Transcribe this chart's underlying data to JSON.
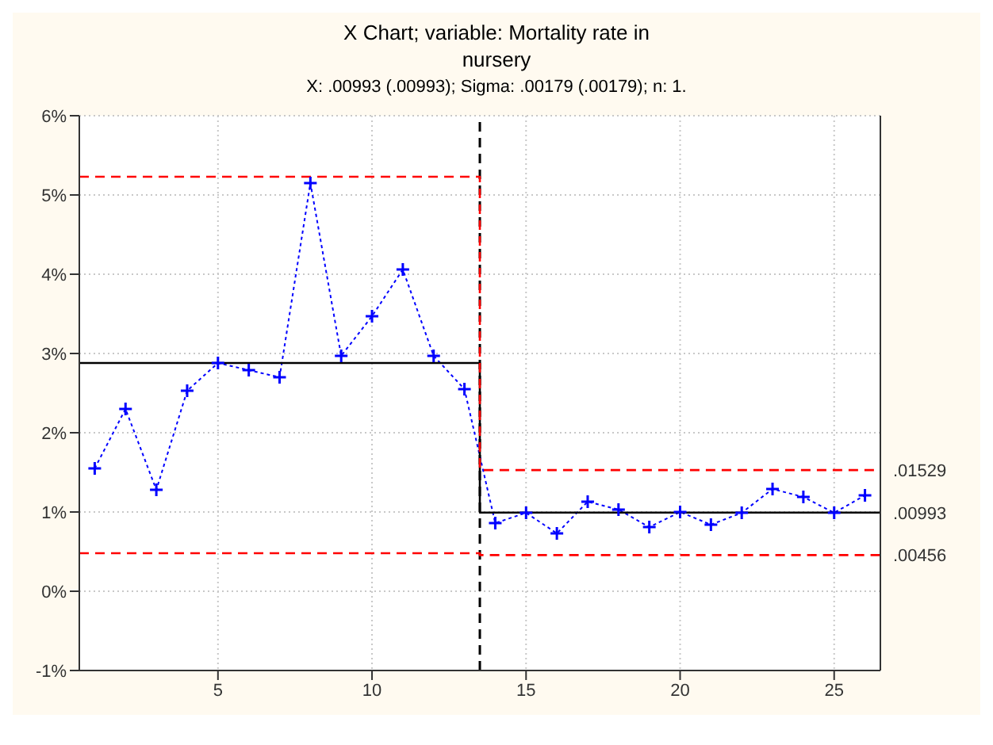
{
  "chart_data": {
    "type": "line",
    "title": "X Chart; variable:  Mortality rate in nursery",
    "subtitle": "X: .00993 (.00993); Sigma: .00179 (.00179); n: 1.",
    "xlim": [
      0.5,
      26.5
    ],
    "xticks": [
      5,
      10,
      15,
      20,
      25
    ],
    "ylim": [
      -1,
      6
    ],
    "yticks": [
      {
        "value": -1,
        "label": "-1%"
      },
      {
        "value": 0,
        "label": "0%"
      },
      {
        "value": 1,
        "label": "1%"
      },
      {
        "value": 2,
        "label": "2%"
      },
      {
        "value": 3,
        "label": "3%"
      },
      {
        "value": 4,
        "label": "4%"
      },
      {
        "value": 5,
        "label": "5%"
      },
      {
        "value": 6,
        "label": "6%"
      }
    ],
    "grid": true,
    "series": [
      {
        "color": "#0000ff",
        "marker": "cross",
        "line_style": "dotted",
        "x": [
          1,
          2,
          3,
          4,
          5,
          6,
          7,
          8,
          9,
          10,
          11,
          12,
          13,
          14,
          15,
          16,
          17,
          18,
          19,
          20,
          21,
          22,
          23,
          24,
          25,
          26
        ],
        "values": [
          1.55,
          2.3,
          1.28,
          2.53,
          2.88,
          2.79,
          2.7,
          5.15,
          2.97,
          3.47,
          4.06,
          2.97,
          2.55,
          0.86,
          0.99,
          0.73,
          1.13,
          1.03,
          0.81,
          1.0,
          0.84,
          0.99,
          1.29,
          1.19,
          0.99,
          1.21
        ]
      },
      {
        "name": ".00993",
        "color": "#000000",
        "marker": "none",
        "line_style": "solid",
        "x": [
          0.5,
          13.5,
          13.5,
          26.5
        ],
        "values": [
          2.88,
          2.88,
          0.993,
          0.993
        ]
      },
      {
        "name": ".01529",
        "color": "#ff0000",
        "marker": "none",
        "line_style": "dashed",
        "x": [
          0.5,
          13.5,
          13.5,
          26.5
        ],
        "values": [
          5.23,
          5.23,
          1.529,
          1.529
        ]
      },
      {
        "name": ".00456",
        "color": "#ff0000",
        "marker": "none",
        "line_style": "dashed",
        "x": [
          0.5,
          13.5,
          13.5,
          26.5
        ],
        "values": [
          0.48,
          0.48,
          0.456,
          0.456
        ]
      }
    ],
    "ref_lines": [
      {
        "axis": "x",
        "value": 13.5,
        "color": "#000000",
        "line_style": "dashed"
      }
    ]
  }
}
